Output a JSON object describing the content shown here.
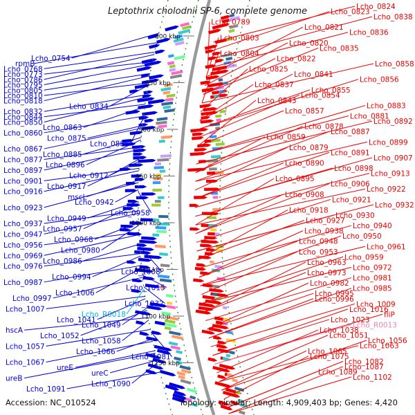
{
  "title": "Leptothrix cholodnii SP-6, complete genome",
  "accession_label": "Accession: NC_010524",
  "topology_label": "Topology: circular; Length: 4,909,403 bp; Genes: 4,420",
  "scale_labels": [
    "800 kbp",
    "850 kbp",
    "900 kbp",
    "950 kbp",
    "1000 kbp",
    "1050 kbp",
    "1100 kbp",
    "1150 kbp"
  ],
  "colors": {
    "forward_strand": "#ee0000",
    "reverse_strand": "#0000dd",
    "rna_label": "#00bcd4",
    "pseudo_label": "#ee82b4",
    "backbone": "#999999"
  },
  "left_labels": [
    {
      "text": "Lcho_0754",
      "type": "gene"
    },
    {
      "text": "rpmB",
      "type": "gene"
    },
    {
      "text": "Lcho_0768",
      "type": "gene"
    },
    {
      "text": "Lcho_0773",
      "type": "gene"
    },
    {
      "text": "Lcho_0786",
      "type": "gene"
    },
    {
      "text": "Lcho_0795",
      "type": "gene"
    },
    {
      "text": "Lcho_0805",
      "type": "gene"
    },
    {
      "text": "Lcho_0810",
      "type": "gene"
    },
    {
      "text": "Lcho_0818",
      "type": "gene"
    },
    {
      "text": "Lcho_0834",
      "type": "gene"
    },
    {
      "text": "Lcho_0832",
      "type": "gene"
    },
    {
      "text": "Lcho_0844",
      "type": "gene"
    },
    {
      "text": "Lcho_0850",
      "type": "gene"
    },
    {
      "text": "Lcho_0863",
      "type": "gene"
    },
    {
      "text": "Lcho_0860",
      "type": "gene"
    },
    {
      "text": "Lcho_0875",
      "type": "gene"
    },
    {
      "text": "Lcho_0886",
      "type": "gene"
    },
    {
      "text": "Lcho_0867",
      "type": "gene"
    },
    {
      "text": "Lcho_0885",
      "type": "gene"
    },
    {
      "text": "Lcho_0877",
      "type": "gene"
    },
    {
      "text": "Lcho_0896",
      "type": "gene"
    },
    {
      "text": "Lcho_0897",
      "type": "gene"
    },
    {
      "text": "Lcho_0912",
      "type": "gene"
    },
    {
      "text": "Lcho_0901",
      "type": "gene"
    },
    {
      "text": "Lcho_0917",
      "type": "gene"
    },
    {
      "text": "Lcho_0916",
      "type": "gene"
    },
    {
      "text": "mscL",
      "type": "gene"
    },
    {
      "text": "Lcho_0942",
      "type": "gene"
    },
    {
      "text": "Lcho_0923",
      "type": "gene"
    },
    {
      "text": "Lcho_0958",
      "type": "gene"
    },
    {
      "text": "Lcho_0949",
      "type": "gene"
    },
    {
      "text": "Lcho_0937",
      "type": "gene"
    },
    {
      "text": "Lcho_0957",
      "type": "gene"
    },
    {
      "text": "Lcho_0947",
      "type": "gene"
    },
    {
      "text": "Lcho_0968",
      "type": "gene"
    },
    {
      "text": "Lcho_0956",
      "type": "gene"
    },
    {
      "text": "Lcho_0980",
      "type": "gene"
    },
    {
      "text": "Lcho_0969",
      "type": "gene"
    },
    {
      "text": "Lcho_0986",
      "type": "gene"
    },
    {
      "text": "Lcho_0976",
      "type": "gene"
    },
    {
      "text": "Lcho_1008",
      "type": "gene"
    },
    {
      "text": "Lcho_0994",
      "type": "gene"
    },
    {
      "text": "Lcho_0987",
      "type": "gene"
    },
    {
      "text": "Lcho_1015",
      "type": "gene"
    },
    {
      "text": "Lcho_1006",
      "type": "gene"
    },
    {
      "text": "Lcho_0997",
      "type": "gene"
    },
    {
      "text": "Lcho_1032",
      "type": "gene"
    },
    {
      "text": "Lcho_1007",
      "type": "gene"
    },
    {
      "text": "Lcho_R0018",
      "type": "rna"
    },
    {
      "text": "Lcho_1041",
      "type": "gene"
    },
    {
      "text": "Lcho_1049",
      "type": "gene"
    },
    {
      "text": "hscA",
      "type": "gene"
    },
    {
      "text": "Lcho_1052",
      "type": "gene"
    },
    {
      "text": "Lcho_1058",
      "type": "gene"
    },
    {
      "text": "Lcho_1057",
      "type": "gene"
    },
    {
      "text": "Lcho_1066",
      "type": "gene"
    },
    {
      "text": "Lcho_1081",
      "type": "gene"
    },
    {
      "text": "Lcho_1067",
      "type": "gene"
    },
    {
      "text": "ureE",
      "type": "gene"
    },
    {
      "text": "ureC",
      "type": "gene"
    },
    {
      "text": "ureB",
      "type": "gene"
    },
    {
      "text": "Lcho_1090",
      "type": "gene"
    },
    {
      "text": "Lcho_1091",
      "type": "gene"
    }
  ],
  "right_labels": [
    {
      "text": "Lcho_0824",
      "type": "gene"
    },
    {
      "text": "Lcho_0823",
      "type": "gene"
    },
    {
      "text": "Lcho_0838",
      "type": "gene"
    },
    {
      "text": "Lcho_0789",
      "type": "gene"
    },
    {
      "text": "Lcho_0821",
      "type": "gene"
    },
    {
      "text": "Lcho_0836",
      "type": "gene"
    },
    {
      "text": "Lcho_0803",
      "type": "gene"
    },
    {
      "text": "Lcho_0820",
      "type": "gene"
    },
    {
      "text": "Lcho_0835",
      "type": "gene"
    },
    {
      "text": "Lcho_0804",
      "type": "gene"
    },
    {
      "text": "Lcho_0822",
      "type": "gene"
    },
    {
      "text": "Lcho_0858",
      "type": "gene"
    },
    {
      "text": "Lcho_0825",
      "type": "gene"
    },
    {
      "text": "Lcho_0841",
      "type": "gene"
    },
    {
      "text": "Lcho_0856",
      "type": "gene"
    },
    {
      "text": "Lcho_0837",
      "type": "gene"
    },
    {
      "text": "Lcho_0855",
      "type": "gene"
    },
    {
      "text": "Lcho_0854",
      "type": "gene"
    },
    {
      "text": "Lcho_0843",
      "type": "gene"
    },
    {
      "text": "Lcho_0883",
      "type": "gene"
    },
    {
      "text": "Lcho_0857",
      "type": "gene"
    },
    {
      "text": "Lcho_0881",
      "type": "gene"
    },
    {
      "text": "Lcho_0892",
      "type": "gene"
    },
    {
      "text": "Lcho_0878",
      "type": "gene"
    },
    {
      "text": "Lcho_0887",
      "type": "gene"
    },
    {
      "text": "Lcho_0859",
      "type": "gene"
    },
    {
      "text": "Lcho_0899",
      "type": "gene"
    },
    {
      "text": "Lcho_0879",
      "type": "gene"
    },
    {
      "text": "Lcho_0891",
      "type": "gene"
    },
    {
      "text": "Lcho_0907",
      "type": "gene"
    },
    {
      "text": "Lcho_0890",
      "type": "gene"
    },
    {
      "text": "Lcho_0898",
      "type": "gene"
    },
    {
      "text": "Lcho_0913",
      "type": "gene"
    },
    {
      "text": "Lcho_0895",
      "type": "gene"
    },
    {
      "text": "Lcho_0906",
      "type": "gene"
    },
    {
      "text": "Lcho_0922",
      "type": "gene"
    },
    {
      "text": "Lcho_0908",
      "type": "gene"
    },
    {
      "text": "Lcho_0921",
      "type": "gene"
    },
    {
      "text": "Lcho_0932",
      "type": "gene"
    },
    {
      "text": "Lcho_0918",
      "type": "gene"
    },
    {
      "text": "Lcho_0930",
      "type": "gene"
    },
    {
      "text": "Lcho_0927",
      "type": "gene"
    },
    {
      "text": "Lcho_0940",
      "type": "gene"
    },
    {
      "text": "Lcho_0938",
      "type": "gene"
    },
    {
      "text": "Lcho_0950",
      "type": "gene"
    },
    {
      "text": "Lcho_0948",
      "type": "gene"
    },
    {
      "text": "Lcho_0961",
      "type": "gene"
    },
    {
      "text": "Lcho_0953",
      "type": "gene"
    },
    {
      "text": "Lcho_0959",
      "type": "gene"
    },
    {
      "text": "Lcho_0963",
      "type": "gene"
    },
    {
      "text": "Lcho_0972",
      "type": "gene"
    },
    {
      "text": "Lcho_0973",
      "type": "gene"
    },
    {
      "text": "Lcho_0981",
      "type": "gene"
    },
    {
      "text": "Lcho_0982",
      "type": "gene"
    },
    {
      "text": "Lcho_0985",
      "type": "gene"
    },
    {
      "text": "Lcho_0995",
      "type": "gene"
    },
    {
      "text": "Lcho_0996",
      "type": "gene"
    },
    {
      "text": "Lcho_1009",
      "type": "gene"
    },
    {
      "text": "Lcho_1016",
      "type": "gene"
    },
    {
      "text": "fliP",
      "type": "gene"
    },
    {
      "text": "Lcho_1023",
      "type": "gene"
    },
    {
      "text": "Lcho_R0013",
      "type": "pseudo"
    },
    {
      "text": "Lcho_1038",
      "type": "gene"
    },
    {
      "text": "Lcho_1051",
      "type": "gene"
    },
    {
      "text": "Lcho_1056",
      "type": "gene"
    },
    {
      "text": "Lcho_1063",
      "type": "gene"
    },
    {
      "text": "Lcho_1065",
      "type": "gene"
    },
    {
      "text": "Lcho_1075",
      "type": "gene"
    },
    {
      "text": "Lcho_1082",
      "type": "gene"
    },
    {
      "text": "Lcho_1087",
      "type": "gene"
    },
    {
      "text": "Lcho_1089",
      "type": "gene"
    },
    {
      "text": "Lcho_1102",
      "type": "gene"
    }
  ]
}
